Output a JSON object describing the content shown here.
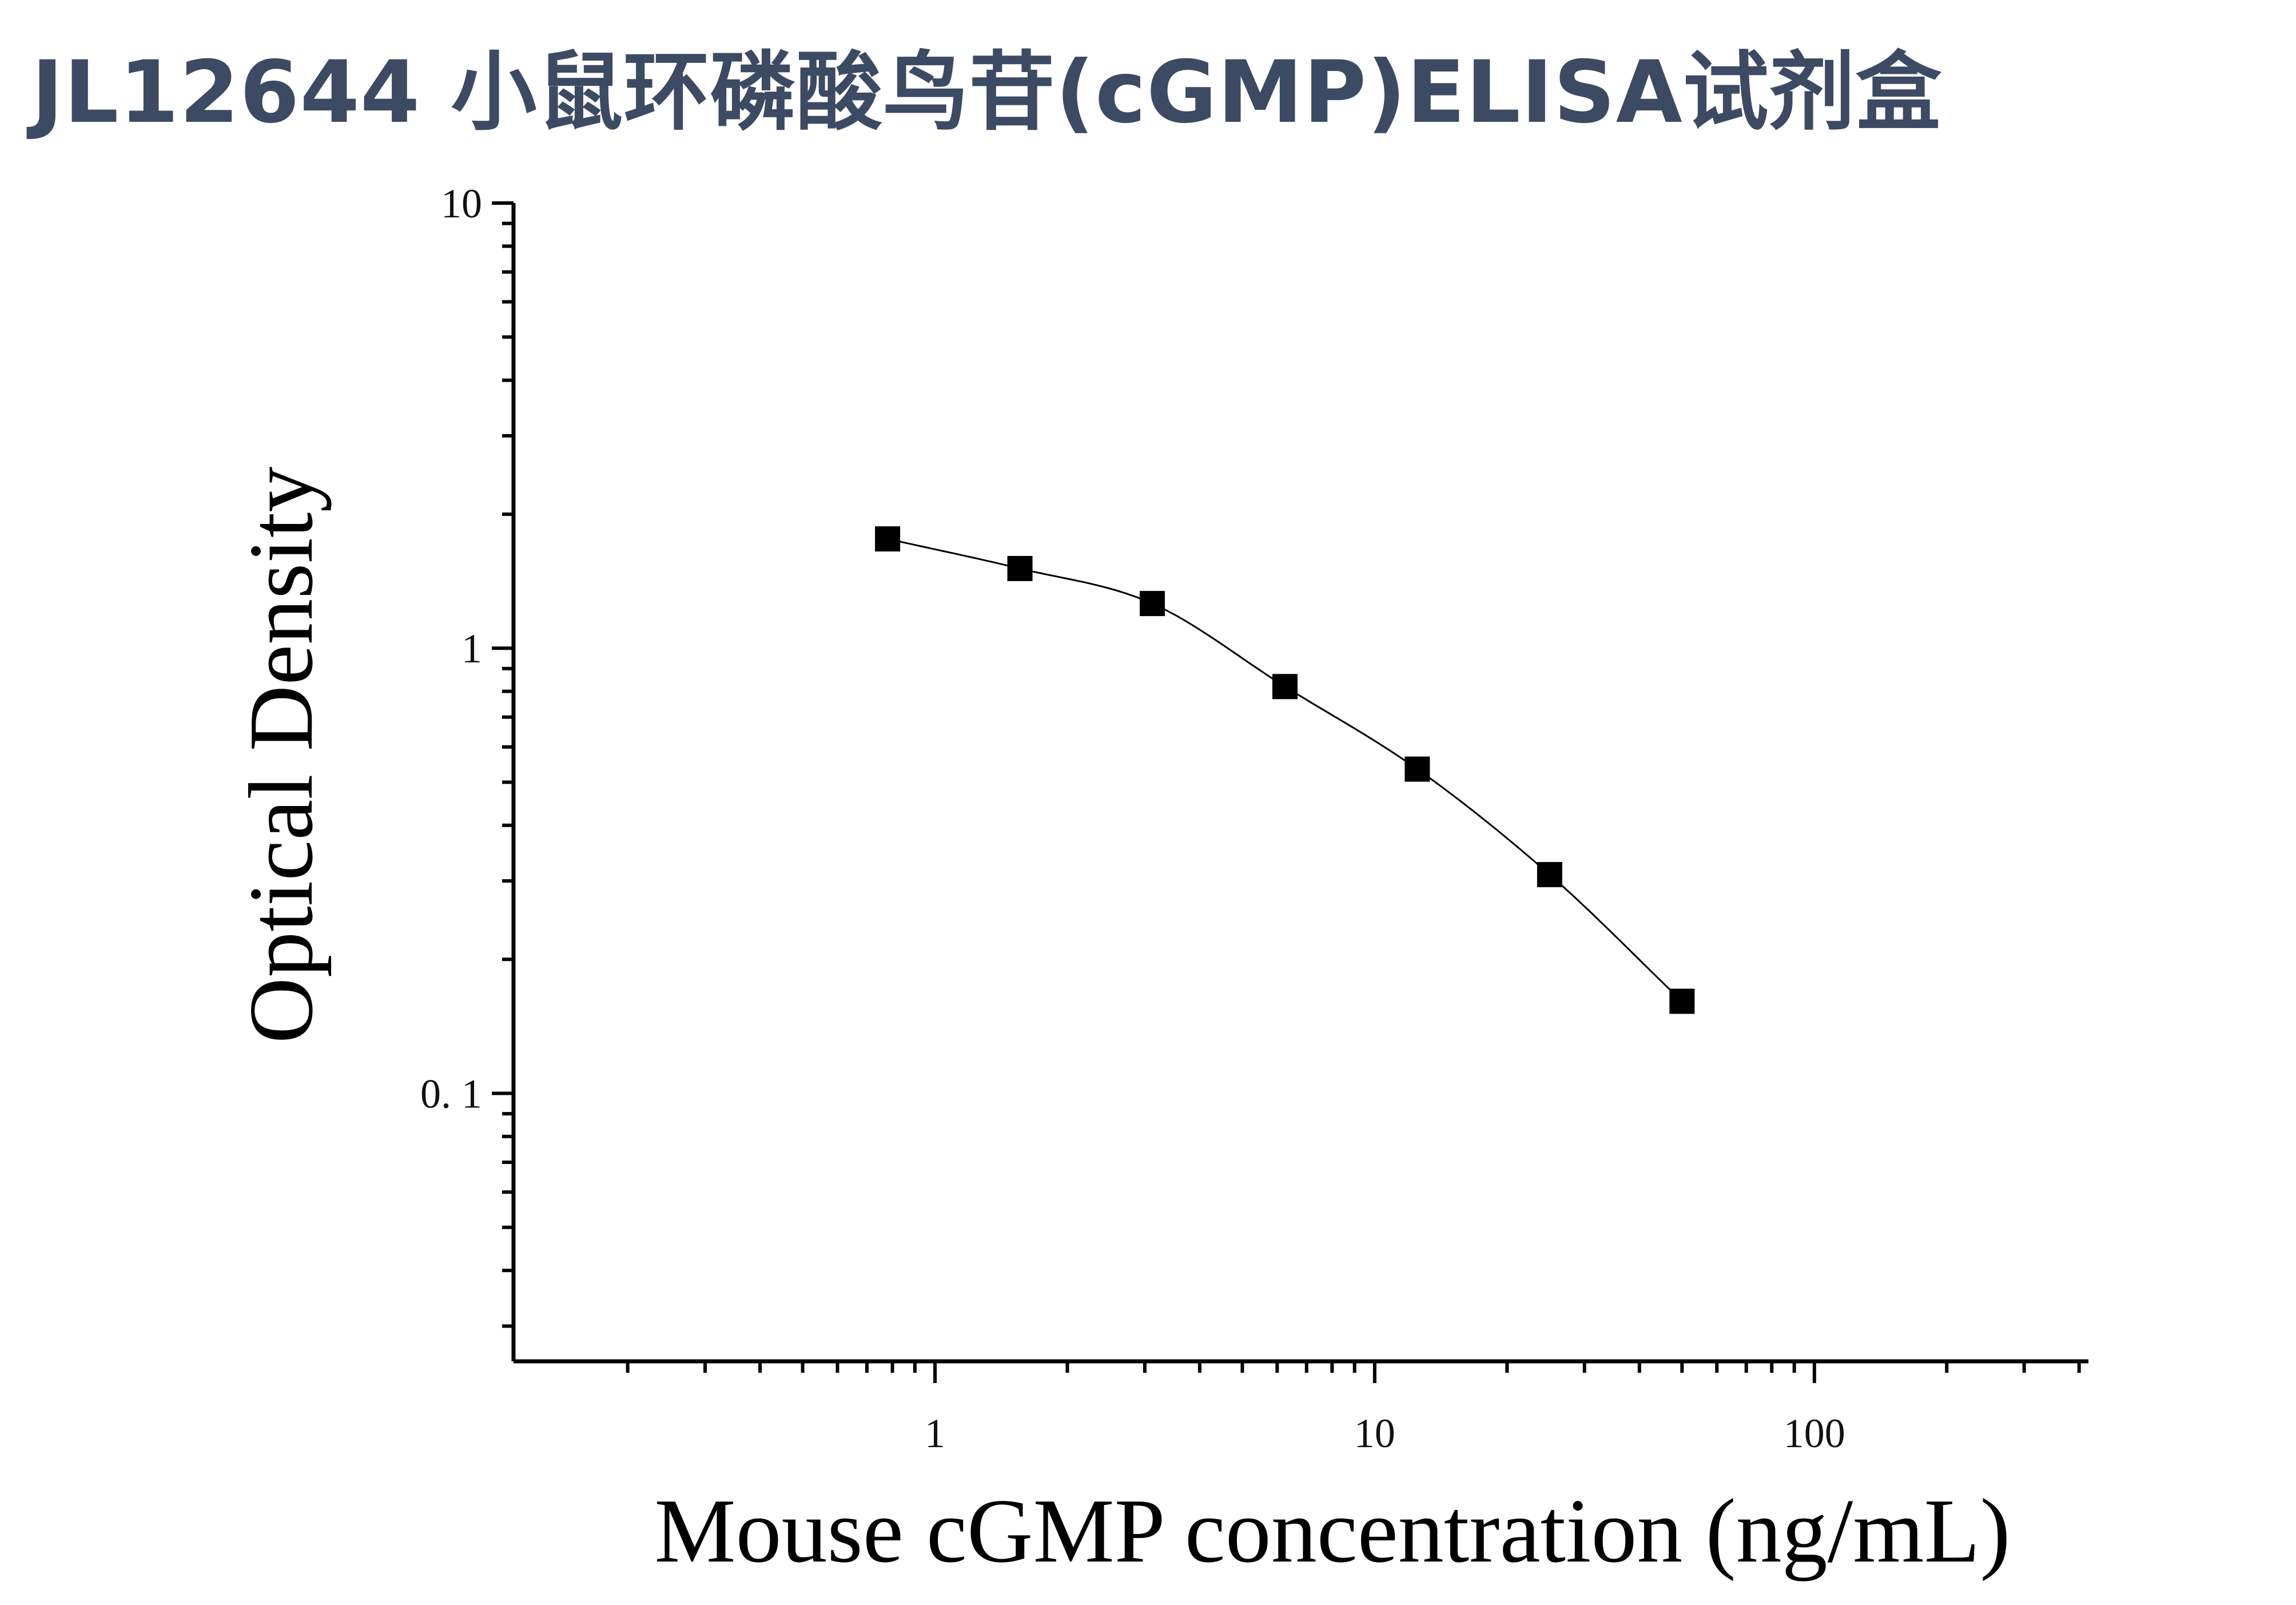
{
  "page": {
    "title": "JL12644 小鼠环磷酸鸟苷(cGMP)ELISA试剂盒"
  },
  "chart_data": {
    "type": "scatter",
    "title": "",
    "xlabel": "Mouse cGMP concentration (ng/mL)",
    "ylabel": "Optical Density",
    "xscale": "log",
    "yscale": "log",
    "xlim": [
      0.11,
      420
    ],
    "ylim": [
      0.025,
      10
    ],
    "x_ticks": [
      {
        "value": 1,
        "label": "1"
      },
      {
        "value": 10,
        "label": "10"
      },
      {
        "value": 100,
        "label": "100"
      }
    ],
    "y_ticks": [
      {
        "value": 0.1,
        "label": "0. 1"
      },
      {
        "value": 1,
        "label": "1"
      },
      {
        "value": 10,
        "label": "10"
      }
    ],
    "grid": false,
    "legend": "none",
    "colors": {
      "marker": "#000000",
      "line": "#000000",
      "axis": "#000000",
      "title": "#3d4a63"
    },
    "series": [
      {
        "marker": "square",
        "x": [
          0.78,
          1.56,
          3.12,
          6.25,
          12.5,
          25,
          50
        ],
        "y": [
          1.76,
          1.51,
          1.26,
          0.82,
          0.535,
          0.31,
          0.161
        ]
      }
    ]
  }
}
